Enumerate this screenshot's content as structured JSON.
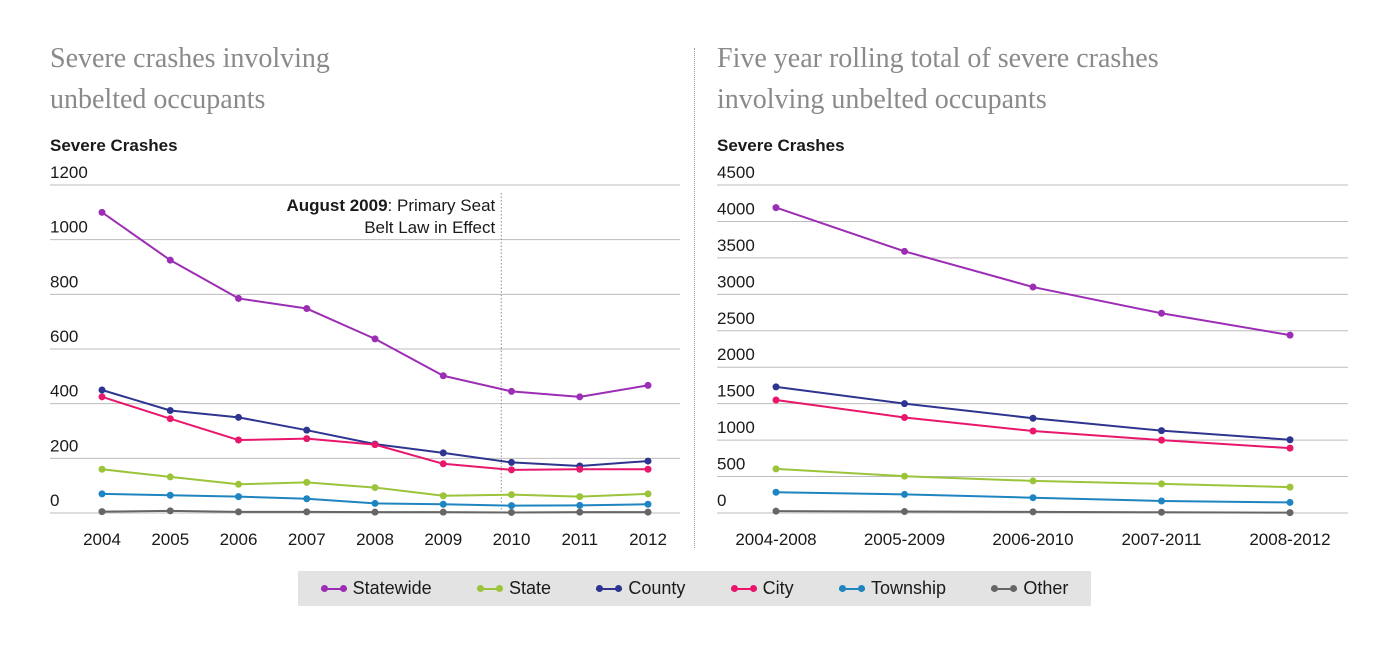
{
  "colors": {
    "Statewide": "#9c2db5",
    "State": "#9cc43b",
    "County": "#2e3590",
    "City": "#e8176c",
    "Township": "#1f85c1",
    "Other": "#666666",
    "grid": "#bdbdbd"
  },
  "chart_data": [
    {
      "type": "line",
      "title": "Severe crashes involving unbelted occupants",
      "ylabel": "Severe Crashes",
      "xlabel": "",
      "ylim": [
        0,
        1200
      ],
      "yticks": [
        0,
        200,
        400,
        600,
        800,
        1000,
        1200
      ],
      "categories": [
        "2004",
        "2005",
        "2006",
        "2007",
        "2008",
        "2009",
        "2010",
        "2011",
        "2012"
      ],
      "series": [
        {
          "name": "Statewide",
          "values": [
            1100,
            925,
            785,
            748,
            637,
            502,
            445,
            425,
            467
          ]
        },
        {
          "name": "State",
          "values": [
            160,
            132,
            105,
            112,
            93,
            63,
            67,
            60,
            70
          ]
        },
        {
          "name": "County",
          "values": [
            450,
            375,
            350,
            303,
            252,
            220,
            185,
            172,
            190
          ]
        },
        {
          "name": "City",
          "values": [
            425,
            345,
            267,
            272,
            250,
            180,
            158,
            160,
            160
          ]
        },
        {
          "name": "Township",
          "values": [
            70,
            65,
            60,
            52,
            35,
            32,
            27,
            28,
            32
          ]
        },
        {
          "name": "Other",
          "values": [
            5,
            8,
            4,
            4,
            3,
            3,
            2,
            3,
            3
          ]
        }
      ],
      "annotation": {
        "category": "2009",
        "bold": "August 2009",
        "line1": ": Primary Seat",
        "line2": "Belt Law in Effect"
      },
      "grid": true
    },
    {
      "type": "line",
      "title": "Five year rolling total of severe crashes involving unbelted occupants",
      "ylabel": "Severe Crashes",
      "xlabel": "",
      "ylim": [
        0,
        4500
      ],
      "yticks": [
        0,
        500,
        1000,
        1500,
        2000,
        2500,
        3000,
        3500,
        4000,
        4500
      ],
      "categories": [
        "2004-2008",
        "2005-2009",
        "2006-2010",
        "2007-2011",
        "2008-2012"
      ],
      "series": [
        {
          "name": "Statewide",
          "values": [
            4190,
            3590,
            3100,
            2740,
            2440
          ]
        },
        {
          "name": "State",
          "values": [
            605,
            505,
            440,
            400,
            355
          ]
        },
        {
          "name": "County",
          "values": [
            1730,
            1500,
            1300,
            1130,
            1005
          ]
        },
        {
          "name": "City",
          "values": [
            1550,
            1310,
            1125,
            1000,
            890
          ]
        },
        {
          "name": "Township",
          "values": [
            285,
            255,
            210,
            165,
            145
          ]
        },
        {
          "name": "Other",
          "values": [
            25,
            20,
            15,
            10,
            5
          ]
        }
      ],
      "grid": true
    }
  ],
  "legend": [
    {
      "key": "Statewide",
      "label": "Statewide"
    },
    {
      "key": "State",
      "label": "State"
    },
    {
      "key": "County",
      "label": "County"
    },
    {
      "key": "City",
      "label": "City"
    },
    {
      "key": "Township",
      "label": "Township"
    },
    {
      "key": "Other",
      "label": "Other"
    }
  ],
  "left_title": {
    "line1": "Severe crashes involving",
    "line2": "unbelted occupants"
  },
  "right_title": {
    "line1": "Five year rolling total of severe crashes",
    "line2": "involving unbelted occupants"
  }
}
